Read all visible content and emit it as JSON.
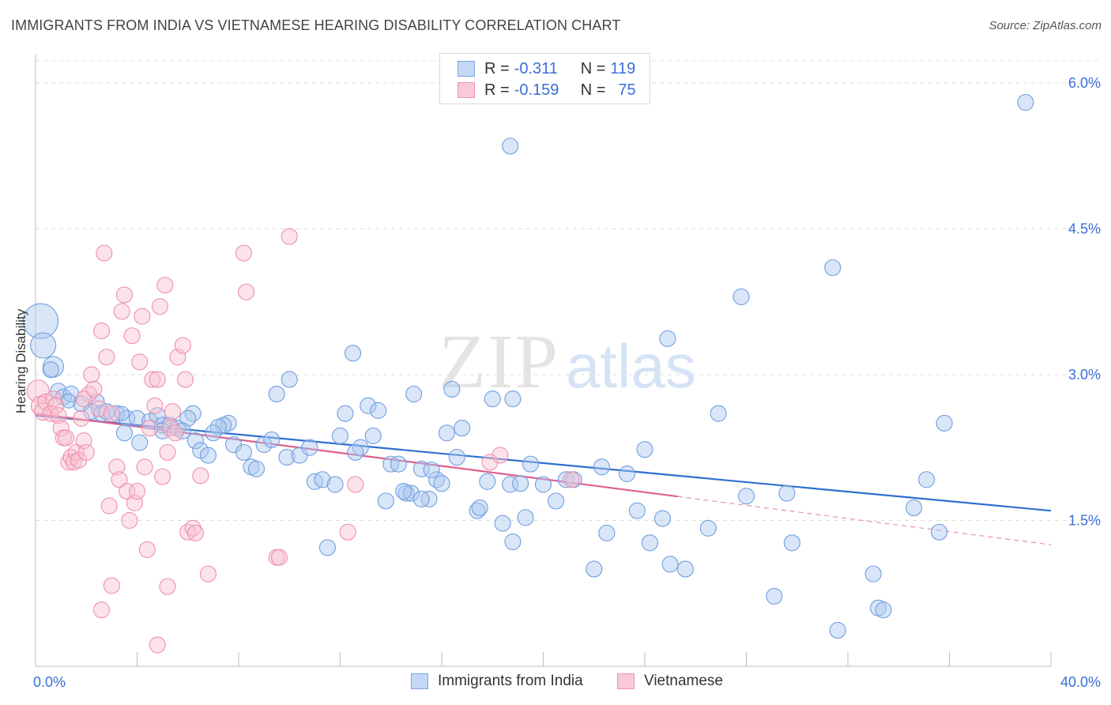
{
  "title": "IMMIGRANTS FROM INDIA VS VIETNAMESE HEARING DISABILITY CORRELATION CHART",
  "source": "Source: ZipAtlas.com",
  "watermark": {
    "zip": "ZIP",
    "atlas": "atlas"
  },
  "legend_top": {
    "rows": [
      {
        "r_label": "R = ",
        "r_value": "-0.311",
        "n_label": "N = ",
        "n_value": "119"
      },
      {
        "r_label": "R = ",
        "r_value": "-0.159",
        "n_label": "N = ",
        "n_value": "75"
      }
    ]
  },
  "legend_bottom": {
    "india": "Immigrants from India",
    "vietnamese": "Vietnamese"
  },
  "colors": {
    "india_fill": "#aac8f0",
    "india_stroke": "#6f9ee0",
    "india_line": "#2f6fcf",
    "viet_fill": "#f8c0d0",
    "viet_stroke": "#ee8fab",
    "viet_line": "#e0608a",
    "axis_text": "#3a6fd8"
  },
  "chart_data": {
    "type": "scatter",
    "title": "IMMIGRANTS FROM INDIA VS VIETNAMESE HEARING DISABILITY CORRELATION CHART",
    "xlabel": "",
    "ylabel": "Hearing Disability",
    "xlim": [
      0,
      40
    ],
    "ylim": [
      0,
      6.3
    ],
    "x_tick_labels": [
      "0.0%",
      "40.0%"
    ],
    "y_ticks": [
      1.5,
      3.0,
      4.5,
      6.0
    ],
    "y_tick_labels": [
      "1.5%",
      "3.0%",
      "4.5%",
      "6.0%"
    ],
    "grid": "horizontal dashed",
    "legend_position": "top-center",
    "series": [
      {
        "name": "Immigrants from India",
        "trend": {
          "x": [
            0,
            40
          ],
          "y": [
            2.58,
            1.6
          ],
          "solid_to": 40
        },
        "points": [
          [
            0.2,
            3.55,
            22
          ],
          [
            0.3,
            3.3,
            16
          ],
          [
            0.7,
            3.08,
            13
          ],
          [
            0.6,
            3.05,
            10
          ],
          [
            0.9,
            2.83,
            10
          ],
          [
            1.1,
            2.77,
            10
          ],
          [
            1.4,
            2.8,
            10
          ],
          [
            1.8,
            2.7,
            10
          ],
          [
            2.4,
            2.72,
            10
          ],
          [
            1.3,
            2.73,
            9
          ],
          [
            2.2,
            2.62,
            10
          ],
          [
            2.6,
            2.6,
            10
          ],
          [
            3.2,
            2.6,
            10
          ],
          [
            2.8,
            2.62,
            10
          ],
          [
            3.6,
            2.55,
            10
          ],
          [
            3.4,
            2.6,
            9
          ],
          [
            4.0,
            2.55,
            10
          ],
          [
            4.5,
            2.52,
            10
          ],
          [
            4.8,
            2.58,
            10
          ],
          [
            5.0,
            2.48,
            10
          ],
          [
            5.3,
            2.48,
            10
          ],
          [
            5.6,
            2.45,
            10
          ],
          [
            6.2,
            2.6,
            10
          ],
          [
            6.0,
            2.55,
            10
          ],
          [
            7.6,
            2.5,
            10
          ],
          [
            7.4,
            2.48,
            10
          ],
          [
            7.2,
            2.46,
            10
          ],
          [
            3.5,
            2.4,
            10
          ],
          [
            4.1,
            2.3,
            10
          ],
          [
            5.0,
            2.42,
            10
          ],
          [
            5.8,
            2.42,
            10
          ],
          [
            6.3,
            2.32,
            10
          ],
          [
            6.5,
            2.22,
            10
          ],
          [
            6.8,
            2.17,
            10
          ],
          [
            7.0,
            2.4,
            10
          ],
          [
            7.8,
            2.28,
            10
          ],
          [
            8.2,
            2.2,
            10
          ],
          [
            8.5,
            2.05,
            10
          ],
          [
            8.7,
            2.03,
            10
          ],
          [
            9.0,
            2.28,
            10
          ],
          [
            9.3,
            2.33,
            10
          ],
          [
            9.5,
            2.8,
            10
          ],
          [
            10.0,
            2.95,
            10
          ],
          [
            9.9,
            2.15,
            10
          ],
          [
            10.4,
            2.17,
            10
          ],
          [
            10.8,
            2.25,
            10
          ],
          [
            11.0,
            1.9,
            10
          ],
          [
            11.3,
            1.92,
            10
          ],
          [
            11.5,
            1.22,
            10
          ],
          [
            11.8,
            1.87,
            10
          ],
          [
            12.0,
            2.37,
            10
          ],
          [
            12.2,
            2.6,
            10
          ],
          [
            12.5,
            3.22,
            10
          ],
          [
            12.8,
            2.25,
            10
          ],
          [
            12.6,
            2.2,
            10
          ],
          [
            13.1,
            2.68,
            10
          ],
          [
            13.3,
            2.37,
            10
          ],
          [
            13.5,
            2.63,
            10
          ],
          [
            13.8,
            1.7,
            10
          ],
          [
            14.0,
            2.08,
            10
          ],
          [
            14.3,
            2.08,
            10
          ],
          [
            14.6,
            1.78,
            10
          ],
          [
            14.8,
            1.78,
            10
          ],
          [
            14.5,
            1.8,
            10
          ],
          [
            15.2,
            2.03,
            10
          ],
          [
            15.5,
            1.72,
            10
          ],
          [
            15.2,
            1.72,
            10
          ],
          [
            15.8,
            1.92,
            10
          ],
          [
            16.0,
            1.88,
            10
          ],
          [
            14.9,
            2.8,
            10
          ],
          [
            15.6,
            2.02,
            10
          ],
          [
            16.2,
            2.4,
            10
          ],
          [
            16.4,
            2.85,
            10
          ],
          [
            16.8,
            2.45,
            10
          ],
          [
            16.6,
            2.15,
            10
          ],
          [
            17.4,
            1.6,
            10
          ],
          [
            17.5,
            1.63,
            10
          ],
          [
            17.8,
            1.9,
            10
          ],
          [
            18.0,
            2.75,
            10
          ],
          [
            18.4,
            1.47,
            10
          ],
          [
            18.7,
            1.87,
            10
          ],
          [
            18.8,
            1.28,
            10
          ],
          [
            19.1,
            1.88,
            10
          ],
          [
            19.3,
            1.53,
            10
          ],
          [
            18.7,
            5.35,
            10
          ],
          [
            18.8,
            2.75,
            10
          ],
          [
            19.5,
            2.08,
            10
          ],
          [
            20.0,
            1.87,
            10
          ],
          [
            20.5,
            1.7,
            10
          ],
          [
            20.9,
            1.92,
            10
          ],
          [
            21.2,
            1.92,
            10
          ],
          [
            22.0,
            1.0,
            10
          ],
          [
            22.5,
            1.37,
            10
          ],
          [
            22.3,
            2.05,
            10
          ],
          [
            23.3,
            1.98,
            10
          ],
          [
            23.7,
            1.6,
            10
          ],
          [
            24.0,
            2.23,
            10
          ],
          [
            24.2,
            1.27,
            10
          ],
          [
            24.7,
            1.52,
            10
          ],
          [
            25.0,
            1.05,
            10
          ],
          [
            24.9,
            3.37,
            10
          ],
          [
            25.6,
            1.0,
            10
          ],
          [
            26.5,
            1.42,
            10
          ],
          [
            26.9,
            2.6,
            10
          ],
          [
            28.0,
            1.75,
            10
          ],
          [
            27.8,
            3.8,
            10
          ],
          [
            29.6,
            1.78,
            10
          ],
          [
            29.1,
            0.72,
            10
          ],
          [
            29.8,
            1.27,
            10
          ],
          [
            31.4,
            4.1,
            10
          ],
          [
            31.6,
            0.37,
            10
          ],
          [
            33.0,
            0.95,
            10
          ],
          [
            33.2,
            0.6,
            10
          ],
          [
            33.4,
            0.58,
            10
          ],
          [
            34.6,
            1.63,
            10
          ],
          [
            35.1,
            1.92,
            10
          ],
          [
            35.8,
            2.5,
            10
          ],
          [
            35.6,
            1.38,
            10
          ],
          [
            39.0,
            5.8,
            10
          ]
        ]
      },
      {
        "name": "Vietnamese",
        "trend": {
          "x": [
            0,
            40
          ],
          "y": [
            2.6,
            1.25
          ],
          "solid_to": 25.3
        },
        "points": [
          [
            0.1,
            2.83,
            14
          ],
          [
            0.2,
            2.68,
            12
          ],
          [
            0.3,
            2.62,
            11
          ],
          [
            0.4,
            2.72,
            10
          ],
          [
            0.6,
            2.6,
            10
          ],
          [
            0.7,
            2.75,
            10
          ],
          [
            0.8,
            2.68,
            10
          ],
          [
            0.9,
            2.58,
            10
          ],
          [
            1.0,
            2.45,
            10
          ],
          [
            1.1,
            2.35,
            10
          ],
          [
            1.2,
            2.35,
            10
          ],
          [
            1.3,
            2.1,
            10
          ],
          [
            1.4,
            2.15,
            10
          ],
          [
            1.5,
            2.1,
            10
          ],
          [
            1.6,
            2.2,
            10
          ],
          [
            1.7,
            2.12,
            10
          ],
          [
            1.8,
            2.55,
            10
          ],
          [
            1.9,
            2.32,
            10
          ],
          [
            2.0,
            2.2,
            10
          ],
          [
            2.1,
            2.8,
            10
          ],
          [
            2.2,
            3.0,
            10
          ],
          [
            1.9,
            2.75,
            10
          ],
          [
            2.3,
            2.85,
            10
          ],
          [
            2.5,
            2.65,
            10
          ],
          [
            2.6,
            3.45,
            10
          ],
          [
            2.7,
            4.25,
            10
          ],
          [
            2.8,
            3.18,
            10
          ],
          [
            2.9,
            1.65,
            10
          ],
          [
            3.0,
            2.6,
            10
          ],
          [
            3.2,
            2.05,
            10
          ],
          [
            3.3,
            1.92,
            10
          ],
          [
            3.4,
            3.65,
            10
          ],
          [
            3.5,
            3.82,
            10
          ],
          [
            3.6,
            1.8,
            10
          ],
          [
            3.7,
            1.5,
            10
          ],
          [
            3.8,
            3.4,
            10
          ],
          [
            3.9,
            1.68,
            10
          ],
          [
            4.0,
            1.8,
            10
          ],
          [
            4.1,
            3.13,
            10
          ],
          [
            4.2,
            3.6,
            10
          ],
          [
            4.3,
            2.05,
            10
          ],
          [
            4.4,
            1.2,
            10
          ],
          [
            4.5,
            2.45,
            10
          ],
          [
            4.6,
            2.95,
            10
          ],
          [
            4.7,
            2.68,
            10
          ],
          [
            4.8,
            2.95,
            10
          ],
          [
            4.9,
            3.7,
            10
          ],
          [
            5.0,
            1.95,
            10
          ],
          [
            5.1,
            3.92,
            10
          ],
          [
            5.2,
            2.2,
            10
          ],
          [
            5.3,
            2.45,
            10
          ],
          [
            5.4,
            2.62,
            10
          ],
          [
            5.5,
            2.4,
            10
          ],
          [
            5.6,
            3.18,
            10
          ],
          [
            5.8,
            3.3,
            10
          ],
          [
            5.9,
            2.95,
            10
          ],
          [
            6.0,
            1.38,
            10
          ],
          [
            6.2,
            1.42,
            10
          ],
          [
            6.3,
            1.37,
            10
          ],
          [
            6.5,
            1.96,
            10
          ],
          [
            6.8,
            0.95,
            10
          ],
          [
            5.2,
            0.82,
            10
          ],
          [
            4.8,
            0.22,
            10
          ],
          [
            3.0,
            0.83,
            10
          ],
          [
            2.6,
            0.58,
            10
          ],
          [
            8.2,
            4.25,
            10
          ],
          [
            8.3,
            3.85,
            10
          ],
          [
            9.5,
            1.12,
            10
          ],
          [
            9.6,
            1.12,
            10
          ],
          [
            10.0,
            4.42,
            10
          ],
          [
            12.3,
            1.38,
            10
          ],
          [
            12.6,
            1.87,
            10
          ],
          [
            17.9,
            2.1,
            10
          ],
          [
            18.3,
            2.17,
            10
          ],
          [
            21.1,
            1.92,
            10
          ]
        ]
      }
    ]
  }
}
